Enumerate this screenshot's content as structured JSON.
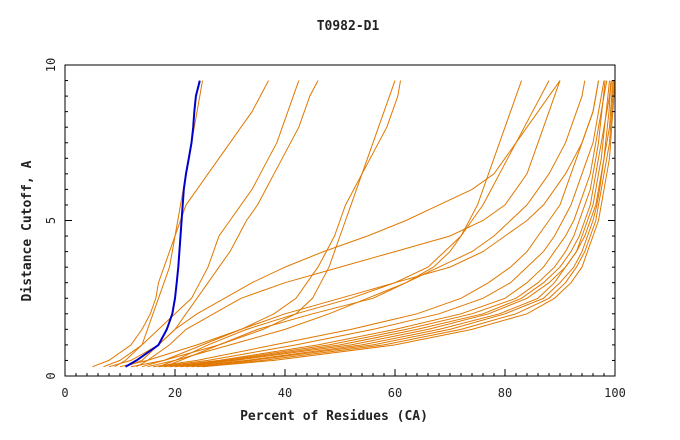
{
  "chart_data": {
    "type": "line",
    "title": "T0982-D1",
    "xlabel": "Percent of Residues (CA)",
    "ylabel": "Distance Cutoff, A",
    "xlim": [
      0,
      100
    ],
    "ylim": [
      0,
      10
    ],
    "xticks": [
      0,
      20,
      40,
      60,
      80,
      100
    ],
    "yticks": [
      0,
      5,
      10
    ],
    "grid": false,
    "colors": {
      "highlight": "#0000cc",
      "models": "#e07800"
    },
    "y": [
      0.3,
      0.5,
      1,
      1.5,
      2,
      2.5,
      3,
      3.5,
      4,
      4.5,
      5,
      5.5,
      6,
      6.5,
      7,
      7.5,
      8,
      8.5,
      9,
      9.5
    ],
    "highlight_series": {
      "x": [
        11,
        13,
        17,
        18.5,
        19.5,
        20,
        20.3,
        20.6,
        20.8,
        21,
        21.2,
        21.4,
        21.6,
        22,
        22.5,
        23,
        23.3,
        23.5,
        23.8,
        24.5
      ]
    },
    "series": [
      {
        "x": [
          18,
          21,
          28,
          35,
          45,
          56,
          62,
          67,
          70,
          72,
          73.5,
          75,
          76,
          77,
          78,
          79,
          80,
          81,
          82,
          83
        ]
      },
      {
        "x": [
          17,
          20,
          26,
          33,
          42,
          52,
          60,
          66,
          69,
          72,
          74,
          76,
          77.5,
          79,
          80.5,
          82,
          83.5,
          85,
          86.5,
          88
        ]
      },
      {
        "x": [
          13,
          15,
          19,
          22,
          27,
          32,
          40,
          50,
          60,
          70,
          76,
          80,
          82,
          84,
          85,
          86,
          87,
          88,
          89,
          90
        ]
      },
      {
        "x": [
          11,
          14,
          17,
          20,
          24,
          29,
          34,
          40,
          47,
          55,
          62,
          68,
          74,
          78,
          80,
          82,
          84,
          86,
          88,
          90
        ]
      },
      {
        "x": [
          15,
          20,
          30,
          40,
          48,
          55,
          62,
          68,
          74,
          78,
          81,
          84,
          86,
          88,
          89.5,
          91,
          92,
          93,
          94,
          94.5
        ]
      },
      {
        "x": [
          16,
          24,
          38,
          52,
          64,
          72,
          77,
          81,
          84,
          86,
          88,
          90,
          91,
          92,
          93,
          94,
          95,
          96,
          96.5,
          97
        ]
      },
      {
        "x": [
          17,
          26,
          42,
          56,
          68,
          76,
          81,
          84,
          87,
          89,
          90.5,
          92,
          93,
          94,
          95,
          96,
          96.5,
          97,
          97.5,
          98
        ]
      },
      {
        "x": [
          18,
          28,
          46,
          60,
          72,
          80,
          84,
          87,
          89,
          91,
          92.5,
          93.5,
          94.5,
          95.5,
          96,
          96.5,
          97,
          97.5,
          98,
          98.5
        ]
      },
      {
        "x": [
          20,
          30,
          50,
          64,
          76,
          83,
          87,
          90,
          92,
          93.5,
          94.5,
          95.5,
          96,
          96.5,
          97,
          97.5,
          98,
          98.5,
          99,
          99.3
        ]
      },
      {
        "x": [
          22,
          33,
          54,
          68,
          79,
          86,
          89,
          91,
          93,
          94.5,
          95.5,
          96.5,
          97,
          97.5,
          98,
          98.5,
          99,
          99.2,
          99.4,
          99.5
        ]
      },
      {
        "x": [
          24,
          36,
          58,
          72,
          82,
          88,
          91,
          93,
          94.5,
          95.5,
          96.5,
          97,
          97.5,
          98,
          98.5,
          99,
          99.2,
          99.4,
          99.6,
          99.7
        ]
      },
      {
        "x": [
          25,
          38,
          60,
          74,
          84,
          89,
          92,
          94,
          95,
          96,
          97,
          97.5,
          98,
          98.5,
          99,
          99.2,
          99.4,
          99.6,
          99.8,
          99.9
        ]
      },
      {
        "x": [
          19,
          29,
          48,
          62,
          74,
          82,
          86,
          89,
          91,
          92.5,
          93.5,
          94.5,
          95.5,
          96,
          96.5,
          97,
          97.3,
          97.6,
          97.9,
          98.2
        ]
      },
      {
        "x": [
          21,
          31,
          52,
          66,
          77,
          84,
          88,
          91,
          93,
          94,
          95,
          96,
          96.5,
          97,
          97.5,
          97.8,
          98.1,
          98.4,
          98.7,
          99
        ]
      },
      {
        "x": [
          23,
          34,
          56,
          70,
          80,
          87,
          90,
          92.5,
          94,
          95,
          96,
          96.7,
          97.2,
          97.6,
          98,
          98.3,
          98.6,
          98.9,
          99.1,
          99.3
        ]
      },
      {
        "x": [
          14,
          18,
          25,
          32,
          40,
          50,
          60,
          70,
          76,
          80,
          84,
          87,
          89,
          91,
          92.5,
          94,
          95,
          96,
          96.5,
          97
        ]
      },
      {
        "x": [
          9,
          11,
          14,
          15,
          16,
          17,
          18,
          19,
          19.5,
          20,
          20.5,
          21,
          21.5,
          22,
          22.5,
          23,
          23.5,
          24,
          24.5,
          25
        ]
      },
      {
        "x": [
          5,
          8,
          12,
          14,
          15.5,
          16.5,
          17,
          18,
          19,
          20,
          21,
          22,
          24,
          26,
          28,
          30,
          32,
          34,
          35.5,
          37
        ]
      },
      {
        "x": [
          7,
          10,
          14,
          17,
          20,
          23,
          24.5,
          26,
          27,
          28,
          30,
          32,
          34,
          35.5,
          37,
          38.5,
          39.5,
          40.5,
          41.5,
          42.5
        ]
      },
      {
        "x": [
          8,
          12,
          17,
          20,
          22,
          24,
          26,
          28,
          30,
          31.5,
          33,
          35,
          36.5,
          38,
          39.5,
          41,
          42.5,
          43.5,
          44.5,
          46
        ]
      },
      {
        "x": [
          10,
          15,
          24,
          32,
          38,
          42,
          44,
          46,
          47.5,
          49,
          50,
          51,
          52.5,
          54,
          55.5,
          57,
          58.5,
          59.5,
          60.5,
          61
        ]
      },
      {
        "x": [
          12,
          18,
          28,
          36,
          42,
          45,
          46.5,
          48,
          49,
          50,
          51,
          52,
          53,
          54,
          55,
          56,
          57,
          58,
          59,
          60
        ]
      }
    ]
  }
}
